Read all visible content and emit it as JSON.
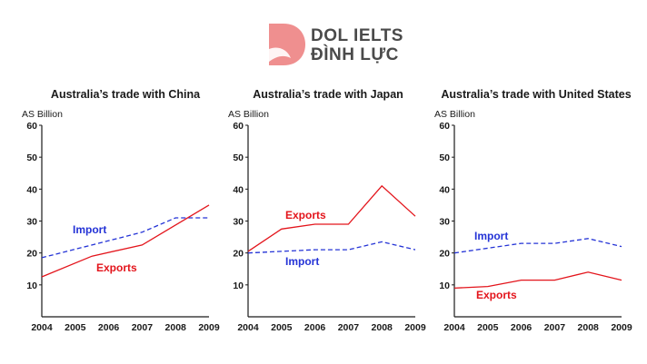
{
  "logo": {
    "line1": "DOL IELTS",
    "line2": "ĐÌNH LỰC",
    "brand_color": "#ef8f8f",
    "text_color": "#4a4a4a"
  },
  "colors": {
    "exports": "#e3141b",
    "import": "#2433d6",
    "axis": "#1a1a1a"
  },
  "chart_data": [
    {
      "type": "line",
      "title": "Australia’s trade with China",
      "ylabel": "AS Billion",
      "x": [
        "2004",
        "2005",
        "2006",
        "2007",
        "2008",
        "2009"
      ],
      "ylim": [
        0,
        60
      ],
      "yticks": [
        10,
        20,
        30,
        40,
        50,
        60
      ],
      "series": [
        {
          "name": "Import",
          "style": "dashed",
          "color": "#2433d6",
          "points": [
            [
              2004,
              18.5
            ],
            [
              2007,
              26.5
            ],
            [
              2008,
              31
            ],
            [
              2009,
              31
            ]
          ]
        },
        {
          "name": "Exports",
          "style": "solid",
          "color": "#e3141b",
          "points": [
            [
              2004,
              12.5
            ],
            [
              2005.5,
              19
            ],
            [
              2007,
              22.5
            ],
            [
              2009,
              35
            ]
          ]
        }
      ]
    },
    {
      "type": "line",
      "title": "Australia’s trade with Japan",
      "ylabel": "AS Billion",
      "x": [
        "2004",
        "2005",
        "2006",
        "2007",
        "2008",
        "2009"
      ],
      "ylim": [
        0,
        60
      ],
      "yticks": [
        10,
        20,
        30,
        40,
        50,
        60
      ],
      "series": [
        {
          "name": "Exports",
          "style": "solid",
          "color": "#e3141b",
          "points": [
            [
              2004,
              20.5
            ],
            [
              2005,
              27.5
            ],
            [
              2006,
              29
            ],
            [
              2007,
              29
            ],
            [
              2008,
              41
            ],
            [
              2009,
              31.5
            ]
          ]
        },
        {
          "name": "Import",
          "style": "dashed",
          "color": "#2433d6",
          "points": [
            [
              2004,
              20
            ],
            [
              2006,
              21
            ],
            [
              2007,
              21
            ],
            [
              2008,
              23.5
            ],
            [
              2009,
              21
            ]
          ]
        }
      ]
    },
    {
      "type": "line",
      "title": "Australia’s trade with United States",
      "ylabel": "AS Billion",
      "x": [
        "2004",
        "2005",
        "2006",
        "2007",
        "2008",
        "2009"
      ],
      "ylim": [
        0,
        60
      ],
      "yticks": [
        10,
        20,
        30,
        40,
        50,
        60
      ],
      "series": [
        {
          "name": "Import",
          "style": "dashed",
          "color": "#2433d6",
          "points": [
            [
              2004,
              20
            ],
            [
              2006,
              23
            ],
            [
              2007,
              23
            ],
            [
              2008,
              24.5
            ],
            [
              2009,
              22
            ]
          ]
        },
        {
          "name": "Exports",
          "style": "solid",
          "color": "#e3141b",
          "points": [
            [
              2004,
              9
            ],
            [
              2005,
              9.5
            ],
            [
              2006,
              11.5
            ],
            [
              2007,
              11.5
            ],
            [
              2008,
              14
            ],
            [
              2009,
              11.5
            ]
          ]
        }
      ]
    }
  ]
}
